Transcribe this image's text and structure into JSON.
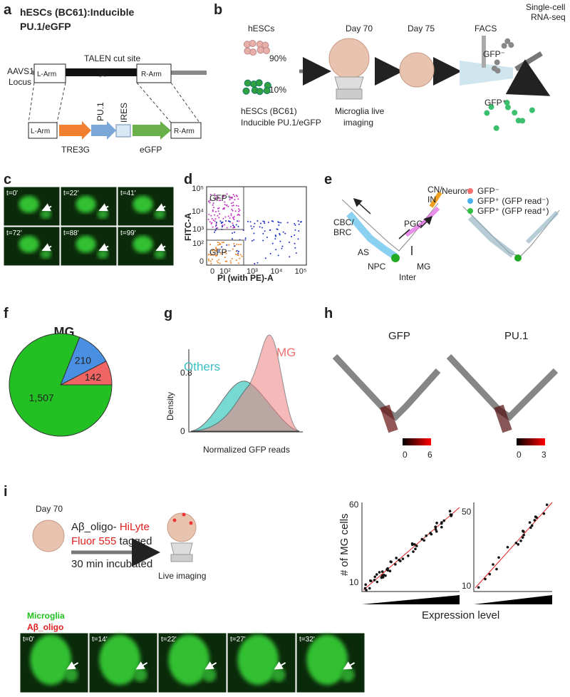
{
  "panels": {
    "a": {
      "letter": "a",
      "title": [
        "hESCs (BC61):Inducible",
        "PU.1/eGFP"
      ],
      "cut_site": "TALEN cut site",
      "locus": [
        "AAVS1",
        "Locus"
      ],
      "left_arm": "L-Arm",
      "right_arm": "R-Arm",
      "construct": {
        "left_arm": "L-Arm",
        "pu1": "PU.1",
        "ires": "IRES",
        "right_arm": "R-Arm",
        "promoter": "TRE3G",
        "reporter": "eGFP"
      }
    },
    "b": {
      "letter": "b",
      "start": "hESCs",
      "pct_high": "90%",
      "pct_low": "10%",
      "source": [
        "hESCs (BC61)",
        "Inducible PU.1/eGFP"
      ],
      "day70": "Day 70",
      "imaging": [
        "Microglia live",
        "imaging"
      ],
      "day75": "Day 75",
      "facs": "FACS",
      "seq": [
        "Single-cell",
        "RNA-seq"
      ],
      "neg": "GFP⁻",
      "pos": "GFP⁺"
    },
    "c": {
      "letter": "c",
      "times": [
        "t=0'",
        "t=22'",
        "t=41'",
        "t=72'",
        "t=88'",
        "t=99'"
      ]
    },
    "d": {
      "letter": "d",
      "ylabel": "FITC-A",
      "xlabel": "PI (with PE)-A",
      "gate_pos": "GFP⁺",
      "gate_neg": "GFP⁻",
      "yticks": [
        "10⁵",
        "10⁴",
        "10³",
        "10²",
        "0"
      ],
      "xticks": [
        "0",
        "10²",
        "10³",
        "10⁴",
        "10⁵"
      ]
    },
    "e": {
      "letter": "e",
      "clusters": [
        "CBC/\nBRC",
        "AS",
        "NPC",
        "Inter",
        "MG",
        "PGC",
        "CN/\nIN",
        "Neuron"
      ],
      "legend": [
        "GFP⁻",
        "GFP⁺ (GFP read⁻)",
        "GFP⁺ (GFP read⁺)"
      ]
    },
    "f": {
      "letter": "f",
      "title": "MG",
      "values": [
        1507,
        210,
        142
      ],
      "value_labels": [
        "1,507",
        "210",
        "142"
      ]
    },
    "g": {
      "letter": "g",
      "ylabel": "Density",
      "yticks": [
        "0.8",
        "0"
      ],
      "others": "Others",
      "mg": "MG",
      "xlabel": "Normalized GFP reads"
    },
    "h": {
      "letter": "h",
      "gfp": "GFP",
      "pu1": "PU.1",
      "gfp_scale": [
        "0",
        "6"
      ],
      "pu1_scale": [
        "0",
        "3"
      ]
    },
    "i": {
      "letter": "i",
      "day": "Day 70",
      "reagent": [
        "Aβ_oligo- ",
        "HiLyte",
        "Fluor 555",
        " tagged"
      ],
      "incubation": "30 min incubated",
      "imaging": "Live imaging",
      "ylabel": "# of MG cells",
      "left_ticks": [
        "60",
        "10"
      ],
      "right_ticks": [
        "50",
        "10"
      ],
      "xlabel": "Expression level",
      "legend": [
        "Microglia",
        "Aβ_oligo"
      ],
      "times": [
        "t=0'",
        "t=14'",
        "t=22'",
        "t=27'",
        "t=32'"
      ]
    }
  }
}
